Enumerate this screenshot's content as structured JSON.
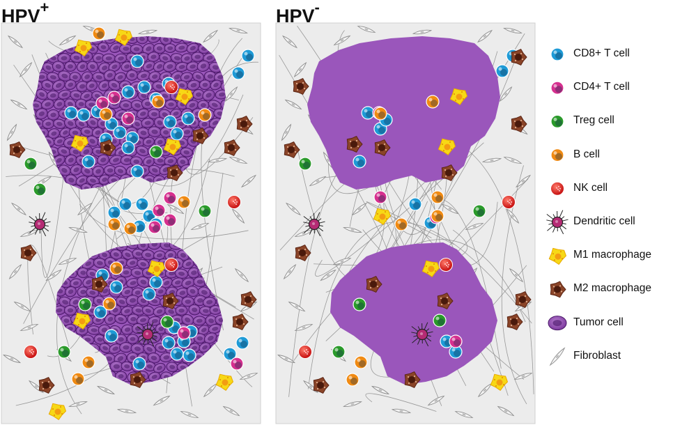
{
  "panels": {
    "left": {
      "title": "HPV",
      "superscript": "+"
    },
    "right": {
      "title": "HPV",
      "superscript": "-"
    }
  },
  "legend": [
    {
      "label": "CD8+ T cell",
      "icon": "cd8-t-cell-icon",
      "color": "#1e9ad6"
    },
    {
      "label": "CD4+ T cell",
      "icon": "cd4-t-cell-icon",
      "color": "#d6308f"
    },
    {
      "label": "Treg cell",
      "icon": "treg-cell-icon",
      "color": "#2a9a2a"
    },
    {
      "label": "B cell",
      "icon": "b-cell-icon",
      "color": "#f08a12"
    },
    {
      "label": "NK cell",
      "icon": "nk-cell-icon",
      "color": "#e02828"
    },
    {
      "label": "Dendritic cell",
      "icon": "dendritic-cell-icon",
      "color": "#c0307a"
    },
    {
      "label": "M1 macrophage",
      "icon": "m1-macrophage-icon",
      "color": "#f5d400"
    },
    {
      "label": "M2 macrophage",
      "icon": "m2-macrophage-icon",
      "color": "#7a3a22"
    },
    {
      "label": "Tumor cell",
      "icon": "tumor-cell-icon",
      "color": "#8e44ad"
    },
    {
      "label": "Fibroblast",
      "icon": "fibroblast-icon",
      "color": "#9a9a9a"
    }
  ]
}
